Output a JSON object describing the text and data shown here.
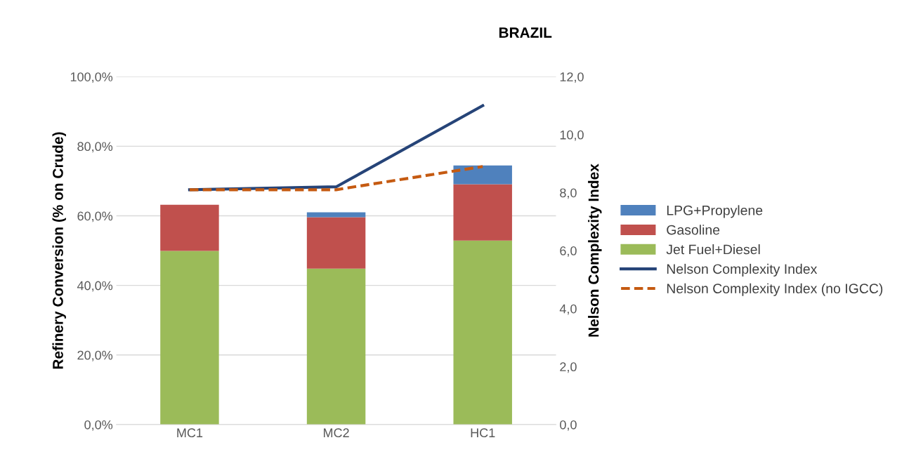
{
  "chart_data": {
    "type": "bar",
    "title": "BRAZIL",
    "ylabel": "Refinery Conversion (% on Crude)",
    "y2label": "Nelson Complexity Index",
    "categories": [
      "MC1",
      "MC2",
      "HC1"
    ],
    "stacked": true,
    "series": [
      {
        "name": "Jet Fuel+Diesel",
        "color": "#9bbb59",
        "values": [
          49.9,
          44.8,
          52.9
        ]
      },
      {
        "name": "Gasoline",
        "color": "#c0504d",
        "values": [
          13.3,
          14.8,
          16.2
        ]
      },
      {
        "name": "LPG+Propylene",
        "color": "#4f81bd",
        "values": [
          null,
          1.4,
          5.4
        ]
      },
      {
        "name": "Nelson Complexity Index",
        "type": "line",
        "axis": "y2",
        "color": "#264478",
        "line_style": "solid",
        "values": [
          8.1,
          8.2,
          11.0
        ]
      },
      {
        "name": "Nelson Complexity Index (no IGCC)",
        "type": "line",
        "axis": "y2",
        "color": "#c55a11",
        "line_style": "dashed",
        "values": [
          8.1,
          8.1,
          8.9
        ]
      }
    ],
    "ylim": [
      0,
      100
    ],
    "yticks": [
      {
        "value": 0,
        "label": "0,0%"
      },
      {
        "value": 20,
        "label": "20,0%"
      },
      {
        "value": 40,
        "label": "40,0%"
      },
      {
        "value": 60,
        "label": "60,0%"
      },
      {
        "value": 80,
        "label": "80,0%"
      },
      {
        "value": 100,
        "label": "100,0%"
      }
    ],
    "y2lim": [
      0,
      12
    ],
    "y2ticks": [
      {
        "value": 0,
        "label": "0,0"
      },
      {
        "value": 2,
        "label": "2,0"
      },
      {
        "value": 4,
        "label": "4,0"
      },
      {
        "value": 6,
        "label": "6,0"
      },
      {
        "value": 8,
        "label": "8,0"
      },
      {
        "value": 10,
        "label": "10,0"
      },
      {
        "value": 12,
        "label": "12,0"
      }
    ],
    "grid": "y",
    "legend": "right",
    "marker": "none"
  }
}
